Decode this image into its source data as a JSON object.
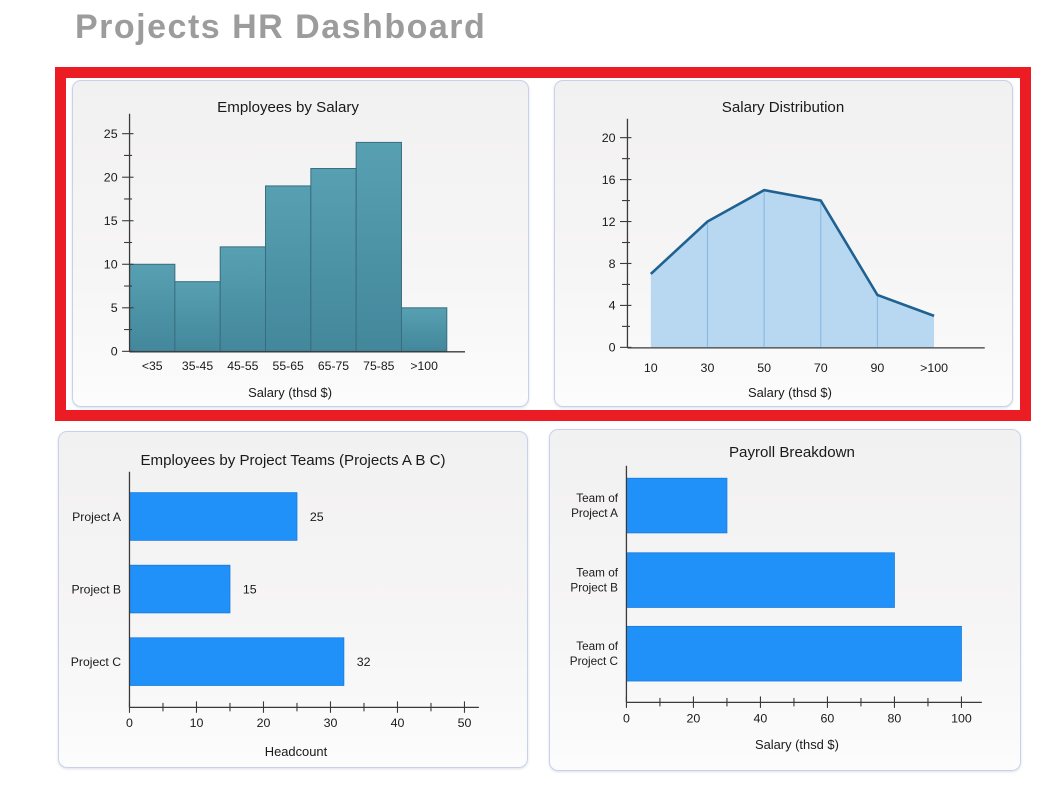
{
  "page": {
    "title": "Projects HR Dashboard"
  },
  "theme": {
    "highlight_border": "#ec1c24",
    "panel_border": "#c9d1ea",
    "axis_color": "#3a3a3a",
    "text_color": "#1a1a1a",
    "teal_bar_top": "#57a0b2",
    "teal_bar_bottom": "#43879b",
    "teal_bar_stroke": "#3a6d7e",
    "blue_bar": "#2191fa",
    "blue_bar_stroke": "#1879dd",
    "area_fill": "#b8d8f2",
    "area_line": "#1f6191",
    "area_divider": "#8abbe2"
  },
  "chart_data": [
    {
      "id": "employees-by-salary",
      "type": "bar",
      "title": "Employees by Salary",
      "categories": [
        "<35",
        "35-45",
        "45-55",
        "55-65",
        "65-75",
        "75-85",
        ">100"
      ],
      "values": [
        10,
        8,
        12,
        19,
        21,
        24,
        5
      ],
      "xlabel": "Salary (thsd $)",
      "ylabel": "",
      "ylim": [
        0,
        25
      ],
      "yticks": [
        0,
        5,
        10,
        15,
        20,
        25
      ],
      "yminor_step": 2.5,
      "grid": false,
      "legend": false,
      "highlighted": true
    },
    {
      "id": "salary-distribution",
      "type": "area",
      "title": "Salary Distribution",
      "x": [
        "10",
        "30",
        "50",
        "70",
        "90",
        ">100"
      ],
      "values": [
        7,
        12,
        15,
        14,
        5,
        3
      ],
      "xlabel": "Salary (thsd $)",
      "ylim": [
        0,
        20
      ],
      "yticks": [
        0,
        4,
        8,
        12,
        16,
        20
      ],
      "yminor_step": 2,
      "grid": false,
      "legend": false,
      "highlighted": true
    },
    {
      "id": "employees-by-project-teams",
      "type": "bar-horizontal",
      "title": "Employees by Project Teams (Projects A B C)",
      "categories": [
        "Project A",
        "Project B",
        "Project C"
      ],
      "values": [
        25,
        15,
        32
      ],
      "value_labels": [
        "25",
        "15",
        "32"
      ],
      "show_value_labels": true,
      "xlabel": "Headcount",
      "xlim": [
        0,
        50
      ],
      "xticks": [
        0,
        10,
        20,
        30,
        40,
        50
      ],
      "xminor_step": 5,
      "grid": false,
      "legend": false,
      "highlighted": false
    },
    {
      "id": "payroll-breakdown",
      "type": "bar-horizontal",
      "title": "Payroll Breakdown",
      "categories": [
        [
          "Team of",
          "Project A"
        ],
        [
          "Team of",
          "Project B"
        ],
        [
          "Team of",
          "Project C"
        ]
      ],
      "values": [
        30,
        80,
        100
      ],
      "show_value_labels": false,
      "xlabel": "Salary (thsd $)",
      "xlim": [
        0,
        100
      ],
      "xticks": [
        0,
        20,
        40,
        60,
        80,
        100
      ],
      "xminor_step": 10,
      "grid": false,
      "legend": false,
      "highlighted": false
    }
  ]
}
